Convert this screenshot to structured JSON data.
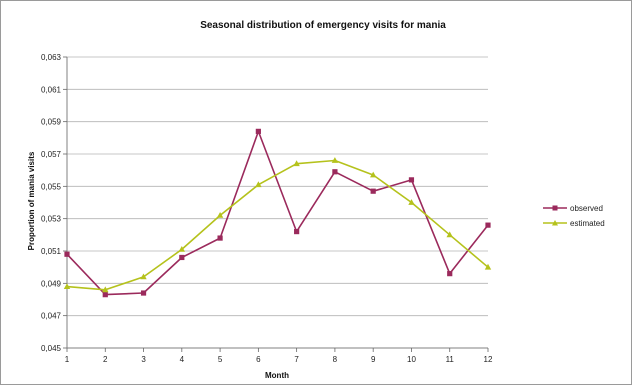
{
  "chart_data": {
    "type": "line",
    "title": "Seasonal distribution of emergency visits for mania",
    "xlabel": "Month",
    "ylabel": "Proportion of mania visits",
    "x": [
      1,
      2,
      3,
      4,
      5,
      6,
      7,
      8,
      9,
      10,
      11,
      12
    ],
    "x_tick_labels": [
      "1",
      "2",
      "3",
      "4",
      "5",
      "6",
      "7",
      "8",
      "9",
      "10",
      "11",
      "12"
    ],
    "ylim": [
      0.045,
      0.063
    ],
    "y_ticks": [
      0.045,
      0.047,
      0.049,
      0.051,
      0.053,
      0.055,
      0.057,
      0.059,
      0.061,
      0.063
    ],
    "y_tick_labels": [
      "0,045",
      "0,047",
      "0,049",
      "0,051",
      "0,053",
      "0,055",
      "0,057",
      "0,059",
      "0,061",
      "0,063"
    ],
    "grid": true,
    "legend_position": "right",
    "series": [
      {
        "name": "observed",
        "color": "#9b2a5c",
        "marker": "square",
        "values": [
          0.0508,
          0.0483,
          0.0484,
          0.0506,
          0.0518,
          0.0584,
          0.0522,
          0.0559,
          0.0547,
          0.0554,
          0.0496,
          0.0526
        ]
      },
      {
        "name": "estimated",
        "color": "#b5c21c",
        "marker": "triangle",
        "values": [
          0.0488,
          0.0486,
          0.0494,
          0.0511,
          0.0532,
          0.0551,
          0.0564,
          0.0566,
          0.0557,
          0.054,
          0.052,
          0.05
        ]
      }
    ]
  }
}
